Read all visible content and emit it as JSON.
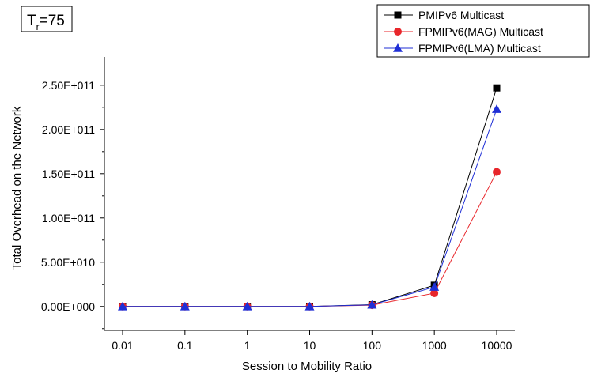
{
  "chart_data": {
    "type": "line",
    "annotation": {
      "main": "T",
      "sub": "r",
      "rest": "=75"
    },
    "xlabel": "Session to Mobility Ratio",
    "ylabel": "Total Overhead on the Network",
    "categories": [
      "0.01",
      "0.1",
      "1",
      "10",
      "100",
      "1000",
      "10000"
    ],
    "y_ticks": [
      0,
      50000000000,
      100000000000,
      150000000000,
      200000000000,
      250000000000
    ],
    "y_tick_labels": [
      "0.00E+000",
      "5.00E+010",
      "1.00E+011",
      "1.50E+011",
      "2.00E+011",
      "2.50E+011"
    ],
    "ylim": [
      -27000000000,
      282000000000
    ],
    "legend_position": "top-right",
    "grid": false,
    "series": [
      {
        "name": "PMIPv6 Multicast",
        "color": "#000000",
        "marker": "square",
        "values": [
          0,
          0,
          0,
          0,
          2000000000,
          24000000000,
          247000000000
        ]
      },
      {
        "name": "FPMIPv6(MAG) Multicast",
        "color": "#e8262b",
        "marker": "circle",
        "values": [
          0,
          0,
          0,
          0,
          1500000000,
          15000000000,
          152000000000
        ]
      },
      {
        "name": "FPMIPv6(LMA) Multicast",
        "color": "#1f2fd6",
        "marker": "triangle",
        "values": [
          0,
          0,
          0,
          0,
          1800000000,
          22000000000,
          223000000000
        ]
      }
    ]
  }
}
